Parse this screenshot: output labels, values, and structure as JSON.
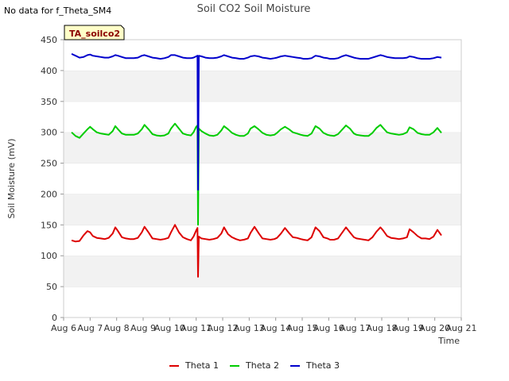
{
  "no_data_note": "No data for f_Theta_SM4",
  "site_badge": "TA_soilco2",
  "chart_data": {
    "type": "line",
    "title": "Soil CO2 Soil Moisture",
    "xlabel": "Time",
    "ylabel": "Soil Moisture (mV)",
    "xlim": [
      6,
      21
    ],
    "ylim": [
      0,
      450
    ],
    "x_ticks": [
      "Aug 6",
      "Aug 7",
      "Aug 8",
      "Aug 9",
      "Aug 10",
      "Aug 11",
      "Aug 12",
      "Aug 13",
      "Aug 14",
      "Aug 15",
      "Aug 16",
      "Aug 17",
      "Aug 18",
      "Aug 19",
      "Aug 20",
      "Aug 21"
    ],
    "y_ticks": [
      0,
      50,
      100,
      150,
      200,
      250,
      300,
      350,
      400,
      450
    ],
    "grid": "horizontal bands",
    "legend_position": "bottom-center",
    "x_unit_note": "x values are day-of-August",
    "series": [
      {
        "name": "Theta 1",
        "color": "#dd0000",
        "x": [
          6.3,
          6.45,
          6.6,
          6.75,
          6.9,
          7.0,
          7.1,
          7.25,
          7.4,
          7.55,
          7.7,
          7.85,
          7.95,
          8.05,
          8.2,
          8.35,
          8.5,
          8.65,
          8.8,
          8.95,
          9.05,
          9.2,
          9.35,
          9.5,
          9.65,
          9.8,
          9.95,
          10.05,
          10.2,
          10.35,
          10.5,
          10.65,
          10.8,
          10.9,
          11.0,
          11.05,
          11.07,
          11.1,
          11.2,
          11.35,
          11.5,
          11.65,
          11.8,
          11.95,
          12.05,
          12.2,
          12.35,
          12.5,
          12.65,
          12.8,
          12.95,
          13.05,
          13.2,
          13.35,
          13.5,
          13.65,
          13.8,
          13.95,
          14.05,
          14.2,
          14.35,
          14.5,
          14.65,
          14.8,
          14.95,
          15.05,
          15.2,
          15.35,
          15.5,
          15.65,
          15.8,
          15.95,
          16.05,
          16.2,
          16.35,
          16.5,
          16.65,
          16.8,
          16.95,
          17.05,
          17.2,
          17.35,
          17.5,
          17.65,
          17.8,
          17.95,
          18.05,
          18.2,
          18.35,
          18.5,
          18.65,
          18.8,
          18.95,
          19.05,
          19.2,
          19.35,
          19.5,
          19.65,
          19.8,
          19.95,
          20.1,
          20.25
        ],
        "values": [
          125,
          123,
          124,
          133,
          140,
          138,
          132,
          129,
          128,
          127,
          129,
          136,
          146,
          140,
          130,
          128,
          127,
          127,
          129,
          138,
          147,
          138,
          128,
          127,
          126,
          127,
          129,
          138,
          150,
          138,
          130,
          127,
          125,
          131,
          141,
          145,
          66,
          131,
          128,
          127,
          126,
          127,
          129,
          136,
          146,
          135,
          130,
          127,
          125,
          126,
          128,
          137,
          147,
          137,
          128,
          127,
          126,
          127,
          129,
          136,
          145,
          137,
          130,
          129,
          127,
          126,
          125,
          130,
          146,
          140,
          130,
          128,
          126,
          126,
          128,
          137,
          146,
          138,
          130,
          128,
          127,
          126,
          125,
          130,
          139,
          146,
          141,
          132,
          129,
          128,
          127,
          128,
          130,
          143,
          138,
          132,
          128,
          128,
          127,
          131,
          142,
          133
        ]
      },
      {
        "name": "Theta 2",
        "color": "#00cc00",
        "x": [
          6.3,
          6.45,
          6.6,
          6.75,
          6.9,
          7.0,
          7.1,
          7.25,
          7.4,
          7.55,
          7.7,
          7.85,
          7.95,
          8.05,
          8.2,
          8.35,
          8.5,
          8.65,
          8.8,
          8.95,
          9.05,
          9.2,
          9.35,
          9.5,
          9.65,
          9.8,
          9.95,
          10.05,
          10.2,
          10.35,
          10.5,
          10.65,
          10.8,
          10.9,
          11.0,
          11.05,
          11.07,
          11.1,
          11.2,
          11.35,
          11.5,
          11.65,
          11.8,
          11.95,
          12.05,
          12.2,
          12.35,
          12.5,
          12.65,
          12.8,
          12.95,
          13.05,
          13.2,
          13.35,
          13.5,
          13.65,
          13.8,
          13.95,
          14.05,
          14.2,
          14.35,
          14.5,
          14.65,
          14.8,
          14.95,
          15.05,
          15.2,
          15.35,
          15.5,
          15.65,
          15.8,
          15.95,
          16.05,
          16.2,
          16.35,
          16.5,
          16.65,
          16.8,
          16.95,
          17.05,
          17.2,
          17.35,
          17.5,
          17.65,
          17.8,
          17.95,
          18.05,
          18.2,
          18.35,
          18.5,
          18.65,
          18.8,
          18.95,
          19.05,
          19.2,
          19.35,
          19.5,
          19.65,
          19.8,
          19.95,
          20.1,
          20.25
        ],
        "values": [
          300,
          294,
          291,
          298,
          305,
          309,
          305,
          300,
          298,
          297,
          296,
          302,
          310,
          305,
          298,
          296,
          296,
          296,
          298,
          305,
          312,
          305,
          297,
          295,
          294,
          295,
          298,
          306,
          314,
          306,
          298,
          296,
          295,
          300,
          309,
          311,
          150,
          306,
          302,
          298,
          295,
          294,
          296,
          303,
          310,
          305,
          299,
          296,
          294,
          294,
          298,
          306,
          310,
          305,
          299,
          296,
          295,
          296,
          299,
          305,
          309,
          305,
          300,
          298,
          296,
          295,
          294,
          298,
          310,
          306,
          299,
          296,
          295,
          294,
          297,
          304,
          311,
          306,
          298,
          296,
          295,
          294,
          294,
          299,
          307,
          312,
          307,
          300,
          298,
          297,
          296,
          297,
          300,
          308,
          305,
          299,
          297,
          296,
          296,
          300,
          307,
          299
        ]
      },
      {
        "name": "Theta 3",
        "color": "#0000cc",
        "x": [
          6.3,
          6.45,
          6.6,
          6.75,
          6.9,
          7.0,
          7.1,
          7.25,
          7.4,
          7.55,
          7.7,
          7.85,
          7.95,
          8.05,
          8.2,
          8.35,
          8.5,
          8.65,
          8.8,
          8.95,
          9.05,
          9.2,
          9.35,
          9.5,
          9.65,
          9.8,
          9.95,
          10.05,
          10.2,
          10.35,
          10.5,
          10.65,
          10.8,
          10.9,
          11.0,
          11.05,
          11.07,
          11.1,
          11.2,
          11.35,
          11.5,
          11.65,
          11.8,
          11.95,
          12.05,
          12.2,
          12.35,
          12.5,
          12.65,
          12.8,
          12.95,
          13.05,
          13.2,
          13.35,
          13.5,
          13.65,
          13.8,
          13.95,
          14.05,
          14.2,
          14.35,
          14.5,
          14.65,
          14.8,
          14.95,
          15.05,
          15.2,
          15.35,
          15.5,
          15.65,
          15.8,
          15.95,
          16.05,
          16.2,
          16.35,
          16.5,
          16.65,
          16.8,
          16.95,
          17.05,
          17.2,
          17.35,
          17.5,
          17.65,
          17.8,
          17.95,
          18.05,
          18.2,
          18.35,
          18.5,
          18.65,
          18.8,
          18.95,
          19.05,
          19.2,
          19.35,
          19.5,
          19.65,
          19.8,
          19.95,
          20.1,
          20.25
        ],
        "values": [
          427,
          424,
          421,
          422,
          425,
          426,
          424,
          423,
          422,
          421,
          421,
          423,
          425,
          424,
          422,
          420,
          420,
          420,
          421,
          424,
          425,
          423,
          421,
          420,
          419,
          420,
          422,
          425,
          425,
          423,
          421,
          420,
          420,
          421,
          423,
          424,
          207,
          424,
          423,
          421,
          420,
          420,
          421,
          423,
          425,
          423,
          421,
          420,
          419,
          419,
          421,
          423,
          424,
          423,
          421,
          420,
          419,
          420,
          421,
          423,
          424,
          423,
          422,
          421,
          420,
          419,
          419,
          420,
          424,
          423,
          421,
          420,
          419,
          419,
          420,
          423,
          425,
          423,
          421,
          420,
          419,
          419,
          419,
          421,
          423,
          425,
          424,
          422,
          421,
          420,
          420,
          420,
          421,
          423,
          422,
          420,
          419,
          419,
          419,
          420,
          422,
          421
        ]
      }
    ]
  }
}
